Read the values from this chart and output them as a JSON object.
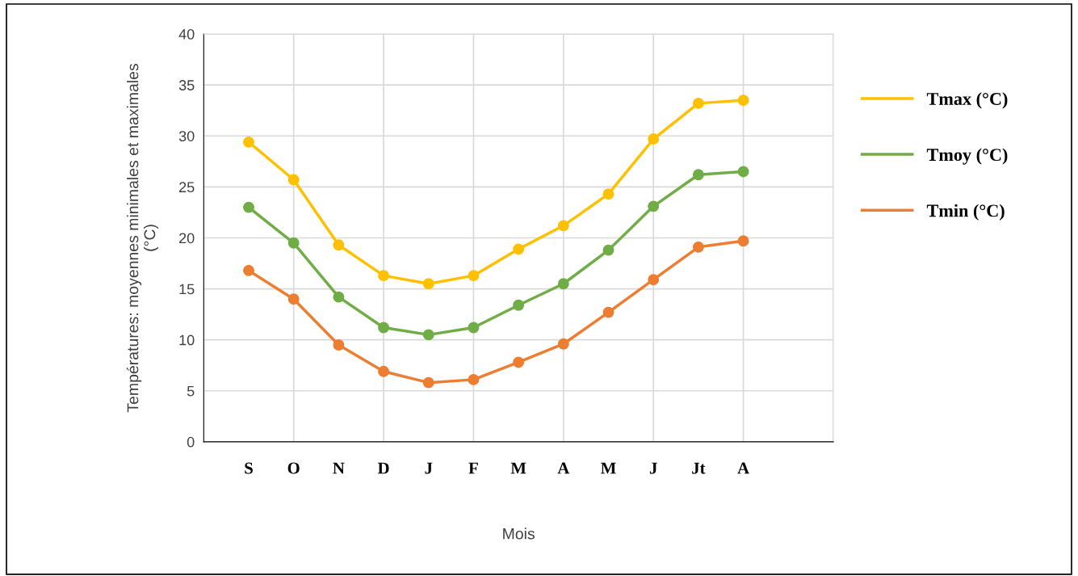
{
  "chart_data": {
    "type": "line",
    "xlabel": "Mois",
    "ylabel": "Températures: moyennes minimales et maximales\n(°C)",
    "categories": [
      "S",
      "O",
      "N",
      "D",
      "J",
      "F",
      "M",
      "A",
      "M",
      "J",
      "Jt",
      "A"
    ],
    "series": [
      {
        "name": "Tmax (°C)",
        "color": "#ffc000",
        "values": [
          29.4,
          25.7,
          19.3,
          16.3,
          15.5,
          16.3,
          18.9,
          21.2,
          24.3,
          29.7,
          33.2,
          33.5
        ]
      },
      {
        "name": "Tmoy (°C)",
        "color": "#70ad47",
        "values": [
          23.0,
          19.5,
          14.2,
          11.2,
          10.5,
          11.2,
          13.4,
          15.5,
          18.8,
          23.1,
          26.2,
          26.5
        ]
      },
      {
        "name": "Tmin (°C)",
        "color": "#ed7d31",
        "values": [
          16.8,
          14.0,
          9.5,
          6.9,
          5.8,
          6.1,
          7.8,
          9.6,
          12.7,
          15.9,
          19.1,
          19.7
        ]
      }
    ],
    "ylim": [
      0,
      40
    ],
    "yticks": [
      0,
      5,
      10,
      15,
      20,
      25,
      30,
      35,
      40
    ],
    "grid": true,
    "legend": "right",
    "marker": "circle",
    "line_style": "solid"
  }
}
